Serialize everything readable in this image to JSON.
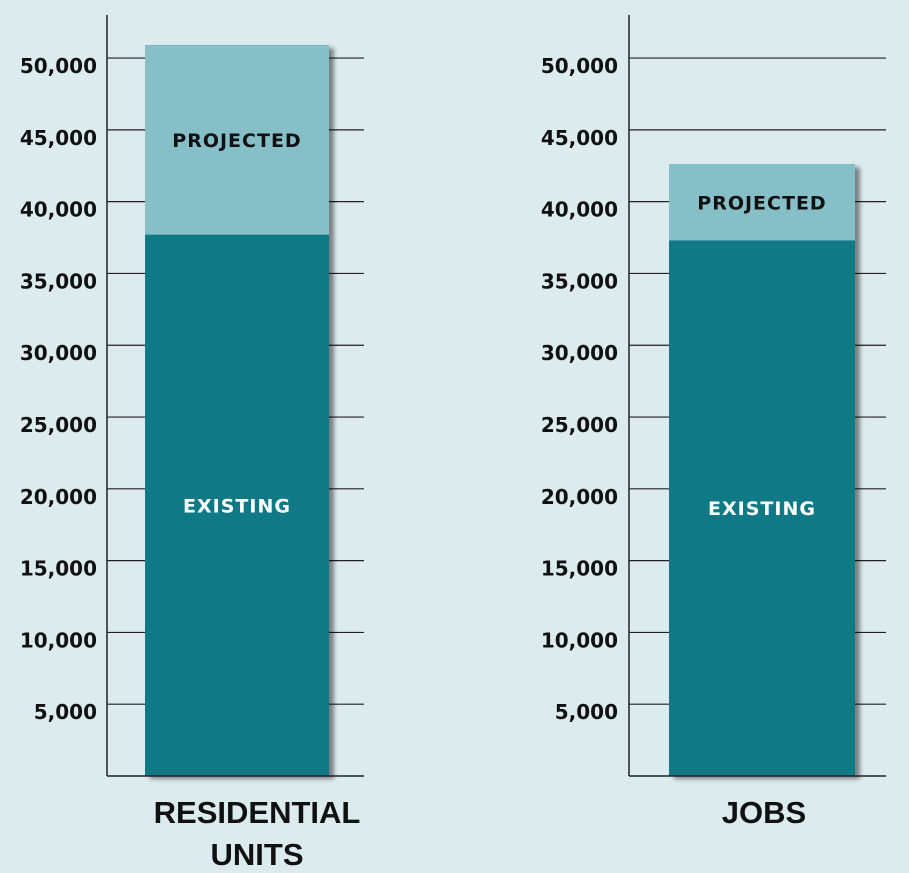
{
  "chart_data": [
    {
      "type": "bar",
      "stacked": true,
      "categories": [
        "RESIDENTIAL UNITS"
      ],
      "category_lines": [
        "RESIDENTIAL",
        "UNITS"
      ],
      "series": [
        {
          "name": "EXISTING",
          "values": [
            37700
          ]
        },
        {
          "name": "PROJECTED",
          "values": [
            13200
          ]
        }
      ],
      "ylim": [
        0,
        53000
      ],
      "yticks": [
        5000,
        10000,
        15000,
        20000,
        25000,
        30000,
        35000,
        40000,
        45000,
        50000
      ],
      "ytick_labels": [
        "5,000",
        "10,000",
        "15,000",
        "20,000",
        "25,000",
        "30,000",
        "35,000",
        "40,000",
        "45,000",
        "50,000"
      ],
      "grid": true
    },
    {
      "type": "bar",
      "stacked": true,
      "categories": [
        "JOBS"
      ],
      "category_lines": [
        "JOBS"
      ],
      "series": [
        {
          "name": "EXISTING",
          "values": [
            37300
          ]
        },
        {
          "name": "PROJECTED",
          "values": [
            5300
          ]
        }
      ],
      "ylim": [
        0,
        53000
      ],
      "yticks": [
        5000,
        10000,
        15000,
        20000,
        25000,
        30000,
        35000,
        40000,
        45000,
        50000
      ],
      "ytick_labels": [
        "5,000",
        "10,000",
        "15,000",
        "20,000",
        "25,000",
        "30,000",
        "35,000",
        "40,000",
        "45,000",
        "50,000"
      ],
      "grid": true
    }
  ],
  "colors": {
    "background": "#dcebee",
    "existing": "#0f7a85",
    "projected": "#87bfc9",
    "existing_label": "#ffffff",
    "projected_label": "#111111",
    "axis": "#222222"
  }
}
